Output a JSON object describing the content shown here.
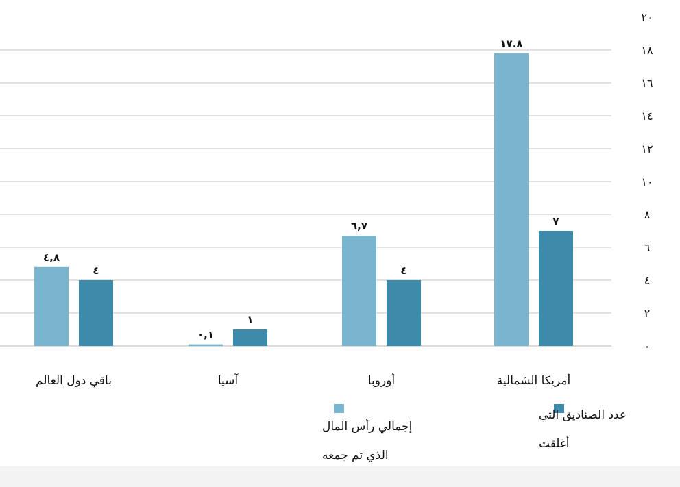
{
  "chart_data": {
    "type": "bar",
    "direction": "rtl",
    "categories": [
      "أمريكا الشمالية",
      "أوروبا",
      "آسيا",
      "باقي دول العالم"
    ],
    "series": [
      {
        "name": "إجمالي رأس المال الذي تم جمعه",
        "color": "#79b5cf",
        "values": [
          17.8,
          6.7,
          0.1,
          4.8
        ],
        "labels": [
          "١٧.٨",
          "٦,٧",
          "٠,١",
          "٤,٨"
        ]
      },
      {
        "name": "عدد الصناديق التي أغلقت",
        "color": "#3d8aab",
        "values": [
          7,
          4,
          1,
          4
        ],
        "labels": [
          "٧",
          "٤",
          "١",
          "٤"
        ]
      }
    ],
    "ylim": [
      0,
      20
    ],
    "yticks": [
      0,
      2,
      4,
      6,
      8,
      10,
      12,
      14,
      16,
      18,
      20
    ],
    "ytick_labels": [
      "٠",
      "٢",
      "٤",
      "٦",
      "٨",
      "١٠",
      "١٢",
      "١٤",
      "١٦",
      "١٨",
      "٢٠"
    ],
    "y_axis_side": "right",
    "grid": true,
    "legend": {
      "position": "bottom",
      "items": [
        {
          "series": 1,
          "lines": [
            "عدد الصناديق التي",
            "أغلقت"
          ]
        },
        {
          "series": 0,
          "lines": [
            "إجمالي رأس المال",
            "الذي تم جمعه"
          ]
        }
      ]
    },
    "title": "",
    "xlabel": "",
    "ylabel": ""
  }
}
